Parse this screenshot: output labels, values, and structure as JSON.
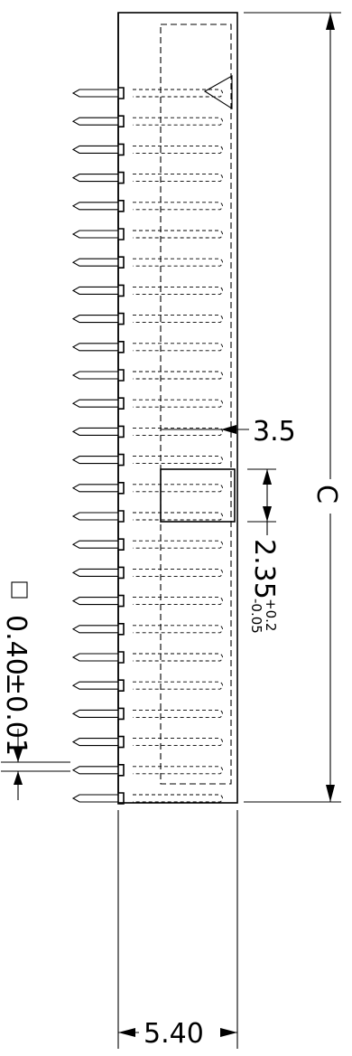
{
  "dimensions": {
    "pitch": "3.5",
    "slot_height": "2.35",
    "slot_tolerance_plus": "+0.2",
    "slot_tolerance_minus": "-0.05",
    "overall_length": "C",
    "body_width": "5.40",
    "pin_square": "0.40",
    "pin_tolerance": "±0.01",
    "square_symbol": "□"
  },
  "pin_count": 26,
  "pin1_marker": "triangle"
}
